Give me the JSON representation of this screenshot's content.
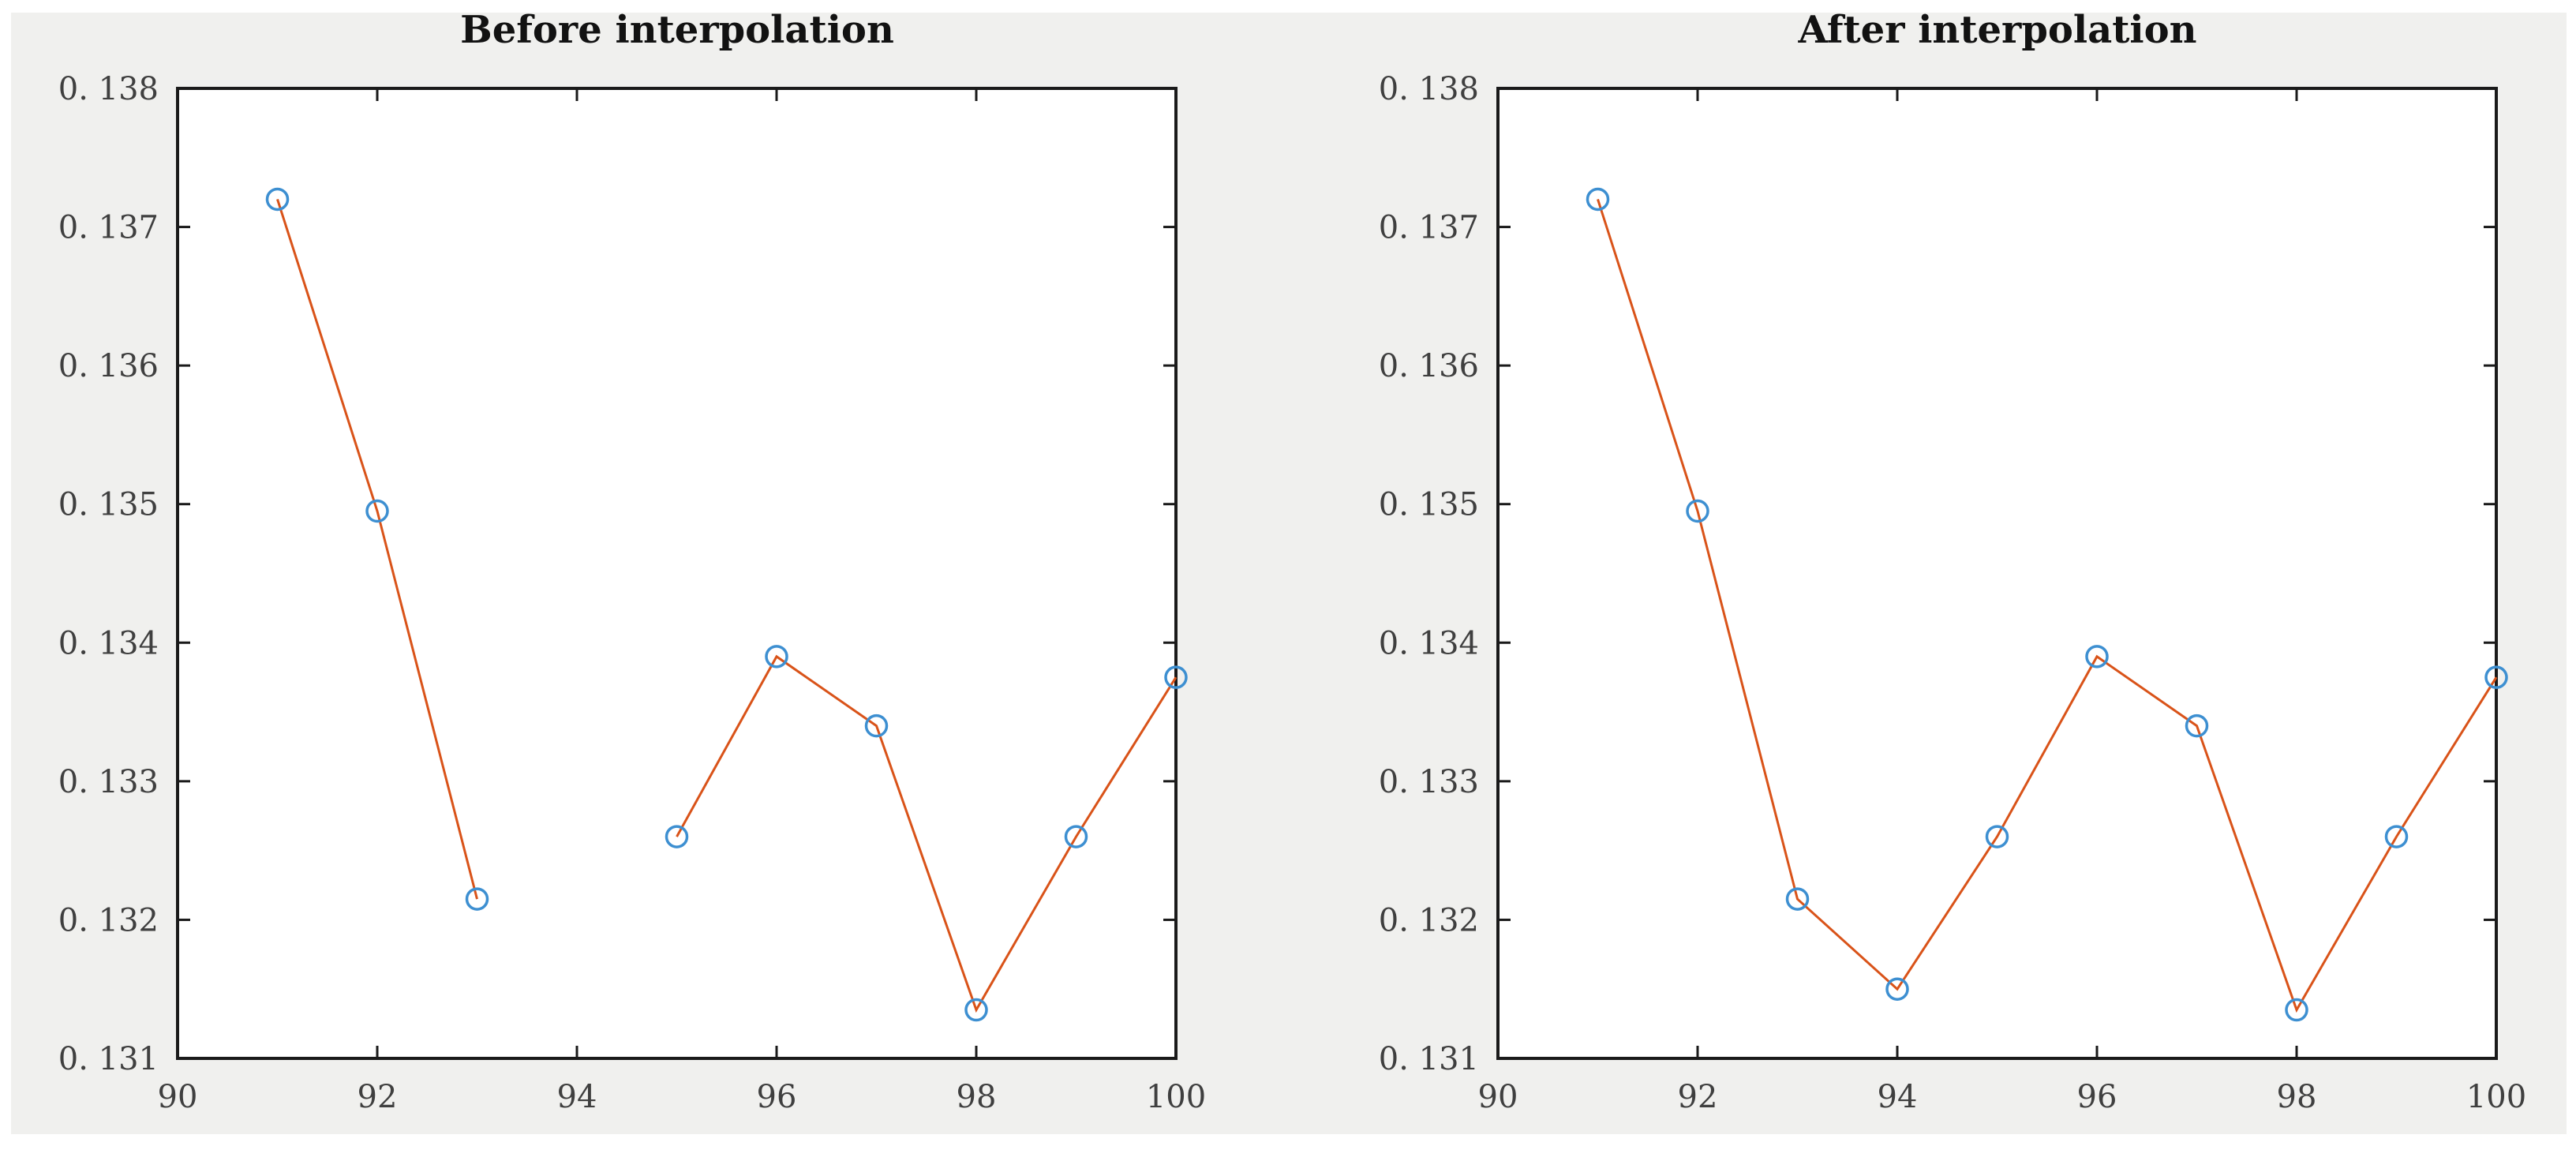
{
  "figure": {
    "page_background": "#ffffff",
    "figure_background": "#f0f0ee",
    "plot_background": "#ffffff",
    "axis_color": "#1a1a1a",
    "tick_label_color": "#3f3f3f",
    "title_color": "#121212"
  },
  "chart_data": [
    {
      "type": "line",
      "title": "Before interpolation",
      "line_color": "#d95319",
      "marker": "open-circle",
      "marker_color": "#3d8fd1",
      "x": [
        91,
        92,
        93,
        94,
        95,
        96,
        97,
        98,
        99,
        100
      ],
      "y": [
        0.1372,
        0.13495,
        0.13215,
        null,
        0.1326,
        0.1339,
        0.1334,
        0.13135,
        0.1326,
        0.13375
      ],
      "xlim": [
        90,
        100
      ],
      "ylim": [
        0.131,
        0.138
      ],
      "x_ticks": [
        90,
        92,
        94,
        96,
        98,
        100
      ],
      "x_tick_labels": [
        "90",
        "92",
        "94",
        "96",
        "98",
        "100"
      ],
      "y_ticks": [
        0.131,
        0.132,
        0.133,
        0.134,
        0.135,
        0.136,
        0.137,
        0.138
      ],
      "y_tick_labels": [
        "0. 131",
        "0. 132",
        "0. 133",
        "0. 134",
        "0. 135",
        "0. 136",
        "0. 137",
        "0. 138"
      ],
      "grid": false,
      "legend": null,
      "note": "line broken between x=93 and x=95 (missing sample at x=94)"
    },
    {
      "type": "line",
      "title": "After interpolation",
      "line_color": "#d95319",
      "marker": "open-circle",
      "marker_color": "#3d8fd1",
      "x": [
        91,
        92,
        93,
        94,
        95,
        96,
        97,
        98,
        99,
        100
      ],
      "y": [
        0.1372,
        0.13495,
        0.13215,
        0.1315,
        0.1326,
        0.1339,
        0.1334,
        0.13135,
        0.1326,
        0.13375
      ],
      "xlim": [
        90,
        100
      ],
      "ylim": [
        0.131,
        0.138
      ],
      "x_ticks": [
        90,
        92,
        94,
        96,
        98,
        100
      ],
      "x_tick_labels": [
        "90",
        "92",
        "94",
        "96",
        "98",
        "100"
      ],
      "y_ticks": [
        0.131,
        0.132,
        0.133,
        0.134,
        0.135,
        0.136,
        0.137,
        0.138
      ],
      "y_tick_labels": [
        "0. 131",
        "0. 132",
        "0. 133",
        "0. 134",
        "0. 135",
        "0. 136",
        "0. 137",
        "0. 138"
      ],
      "grid": false,
      "legend": null,
      "note": "continuous line, interpolated point present at x=94"
    }
  ]
}
